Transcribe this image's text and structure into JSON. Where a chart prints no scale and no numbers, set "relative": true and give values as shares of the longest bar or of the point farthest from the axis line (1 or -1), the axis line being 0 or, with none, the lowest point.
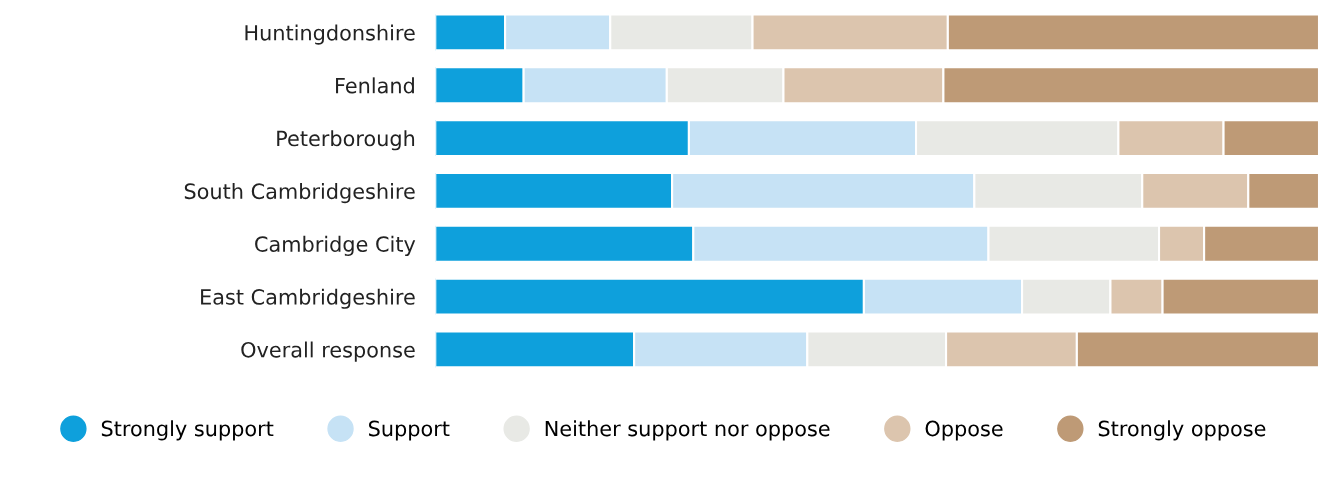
{
  "chart_data": {
    "type": "bar",
    "orientation": "horizontal",
    "stacked": true,
    "relative": true,
    "legend": "bottom",
    "grid": false,
    "marker": "circle",
    "categories": [
      "Huntingdonshire",
      "Fenland",
      "Peterborough",
      "South Cambridgeshire",
      "Cambridge City",
      "East Cambridgeshire",
      "Overall response"
    ],
    "series": [
      {
        "name": "Strongly support",
        "color": "#0ea0dc",
        "values": [
          0.079,
          0.1,
          0.287,
          0.268,
          0.292,
          0.485,
          0.225
        ]
      },
      {
        "name": "Support",
        "color": "#c6e2f5",
        "values": [
          0.119,
          0.162,
          0.257,
          0.342,
          0.334,
          0.179,
          0.196
        ]
      },
      {
        "name": "Neither support nor oppose",
        "color": "#e8e9e5",
        "values": [
          0.161,
          0.132,
          0.229,
          0.19,
          0.193,
          0.1,
          0.157
        ]
      },
      {
        "name": "Oppose",
        "color": "#dcc5ae",
        "values": [
          0.221,
          0.181,
          0.119,
          0.12,
          0.051,
          0.059,
          0.148
        ]
      },
      {
        "name": "Strongly oppose",
        "color": "#be9a76",
        "values": [
          0.42,
          0.425,
          0.108,
          0.08,
          0.13,
          0.177,
          0.274
        ]
      }
    ]
  }
}
